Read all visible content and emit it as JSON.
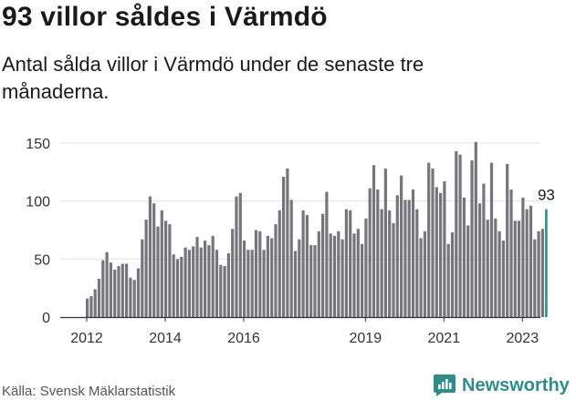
{
  "title": "93 villor såldes i Värmdö",
  "subtitle": "Antal sålda villor i Värmdö under de senaste tre månaderna.",
  "source": "Källa: Svensk Mäklarstatistik",
  "brand": "Newsworthy",
  "colors": {
    "bar": "#76757a",
    "highlight": "#23918e",
    "brand": "#2f8c8a",
    "grid": "#e3e3e3",
    "axis": "#333333"
  },
  "chart_data": {
    "type": "bar",
    "title": "93 villor såldes i Värmdö",
    "subtitle": "Antal sålda villor i Värmdö under de senaste tre månaderna.",
    "xlabel": "",
    "ylabel": "",
    "ylim": [
      0,
      150
    ],
    "yticks": [
      "0",
      "50",
      "100",
      "150"
    ],
    "xtick_labels": [
      "2012",
      "2014",
      "2016",
      "2019",
      "2021",
      "2023"
    ],
    "xtick_months_from_start": [
      0,
      20,
      40,
      71,
      91,
      111
    ],
    "start": "2012-01",
    "frequency": "monthly",
    "highlight_label": "93",
    "values": [
      16,
      18,
      24,
      33,
      49,
      56,
      47,
      41,
      44,
      46,
      46,
      34,
      32,
      42,
      67,
      84,
      104,
      98,
      78,
      92,
      83,
      80,
      54,
      50,
      52,
      60,
      58,
      61,
      69,
      60,
      66,
      62,
      70,
      58,
      45,
      44,
      55,
      76,
      104,
      107,
      66,
      58,
      58,
      75,
      74,
      58,
      70,
      68,
      80,
      92,
      121,
      128,
      101,
      57,
      67,
      92,
      88,
      62,
      62,
      74,
      89,
      108,
      72,
      70,
      74,
      67,
      93,
      92,
      72,
      76,
      63,
      85,
      111,
      131,
      110,
      93,
      128,
      92,
      81,
      105,
      122,
      101,
      101,
      110,
      93,
      68,
      74,
      133,
      128,
      112,
      107,
      117,
      63,
      73,
      143,
      140,
      103,
      79,
      135,
      151,
      98,
      115,
      84,
      133,
      85,
      74,
      66,
      132,
      110,
      83,
      83,
      103,
      93,
      96,
      67,
      74,
      76,
      93
    ]
  }
}
